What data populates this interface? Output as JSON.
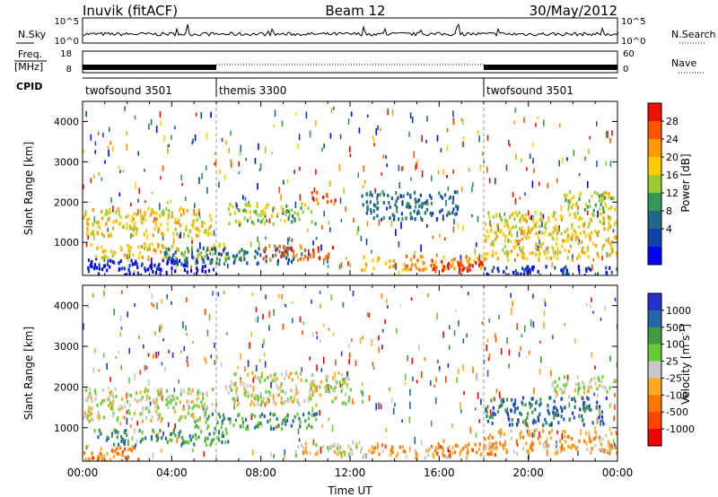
{
  "header": {
    "station": "Inuvik (fitACF)",
    "beam": "Beam 12",
    "date": "30/May/2012"
  },
  "chart_data": [
    {
      "type": "line",
      "panel": "noise",
      "left_label": "N.Sky",
      "right_label": "N.Search",
      "left_ticks": [
        "10^5",
        "10^0"
      ],
      "right_ticks": [
        "10^5",
        "10^0"
      ],
      "series": [
        {
          "name": "N.Sky",
          "line": "solid"
        },
        {
          "name": "N.Search",
          "line": "dotted"
        }
      ]
    },
    {
      "type": "line",
      "panel": "frequency",
      "left_label": "Freq.",
      "left_unit": "[MHz]",
      "left_ticks": [
        "18",
        "8"
      ],
      "right_label": "Nave",
      "right_ticks": [
        "60",
        "0"
      ],
      "freq_segments": [
        {
          "start_hr": 0.0,
          "end_hr": 6.0,
          "freq_mhz": 10.5
        },
        {
          "start_hr": 18.0,
          "end_hr": 24.0,
          "freq_mhz": 10.5
        }
      ],
      "nave_level": 0
    },
    {
      "type": "table",
      "panel": "cpid",
      "label": "CPID",
      "segments": [
        {
          "start_hr": 0,
          "end_hr": 6,
          "text": "twofsound 3501"
        },
        {
          "start_hr": 6,
          "end_hr": 18,
          "text": "themis 3300"
        },
        {
          "start_hr": 18,
          "end_hr": 24,
          "text": "twofsound 3501"
        }
      ]
    },
    {
      "type": "heatmap",
      "panel": "power",
      "ylabel": "Slant Range [km]",
      "xlim_hr": [
        0,
        24
      ],
      "ylim_km": [
        180,
        4500
      ],
      "yticks": [
        1000,
        2000,
        3000,
        4000
      ],
      "colorbar": {
        "label": "Power [dB]",
        "ticks": [
          "28",
          "24",
          "20",
          "16",
          "12",
          "8",
          "4"
        ],
        "colors": [
          "#ee1100",
          "#ff5500",
          "#ff9900",
          "#ffcc00",
          "#99cc33",
          "#339955",
          "#226688",
          "#1144aa",
          "#0000ff"
        ]
      },
      "bands": [
        {
          "t0": 0.0,
          "t1": 6.0,
          "r0": 200,
          "r1": 650,
          "level": 8
        },
        {
          "t0": 0.3,
          "t1": 6.5,
          "r0": 650,
          "r1": 1000,
          "level": 3
        },
        {
          "t0": 0.0,
          "t1": 5.8,
          "r0": 1200,
          "r1": 1900,
          "level": 3
        },
        {
          "t0": 3.5,
          "t1": 9.8,
          "r0": 500,
          "r1": 900,
          "level": 6
        },
        {
          "t0": 6.5,
          "t1": 10.5,
          "r0": 1500,
          "r1": 2000,
          "level": 4
        },
        {
          "t0": 8.0,
          "t1": 11.2,
          "r0": 600,
          "r1": 950,
          "level": 1
        },
        {
          "t0": 10.2,
          "t1": 11.3,
          "r0": 2000,
          "r1": 2300,
          "level": 1
        },
        {
          "t0": 12.5,
          "t1": 16.8,
          "r0": 1600,
          "r1": 2300,
          "level": 6
        },
        {
          "t0": 12.5,
          "t1": 17.9,
          "r0": 350,
          "r1": 700,
          "level": 2
        },
        {
          "t0": 15.5,
          "t1": 18.0,
          "r0": 300,
          "r1": 600,
          "level": 0
        },
        {
          "t0": 18.0,
          "t1": 24.0,
          "r0": 600,
          "r1": 1800,
          "level": 3
        },
        {
          "t0": 21.5,
          "t1": 24.0,
          "r0": 1800,
          "r1": 2300,
          "level": 4
        },
        {
          "t0": 18.0,
          "t1": 24.0,
          "r0": 200,
          "r1": 450,
          "level": 7
        }
      ]
    },
    {
      "type": "heatmap",
      "panel": "velocity",
      "ylabel": "Slant Range [km]",
      "xlabel": "Time UT",
      "xlim_hr": [
        0,
        24
      ],
      "ylim_km": [
        180,
        4500
      ],
      "yticks": [
        1000,
        2000,
        3000,
        4000
      ],
      "xtick_labels": [
        "00:00",
        "04:00",
        "08:00",
        "12:00",
        "16:00",
        "20:00",
        "00:00"
      ],
      "colorbar": {
        "label": "Velocity [m s",
        "label_sup": "-1",
        "label_end": "]",
        "ticks": [
          "1000",
          "500",
          "100",
          "25",
          "-25",
          "-100",
          "-500",
          "-1000"
        ],
        "colors": [
          "#2233cc",
          "#2266aa",
          "#449944",
          "#66cc33",
          "#c8c8c8",
          "#ffaa22",
          "#ff7700",
          "#ff4400",
          "#ee0000"
        ]
      },
      "bands": [
        {
          "t0": 0.0,
          "t1": 2.5,
          "r0": 200,
          "r1": 600,
          "level": 6
        },
        {
          "t0": 0.0,
          "t1": 6.0,
          "r0": 1200,
          "r1": 2000,
          "level": 4
        },
        {
          "t0": 0.5,
          "t1": 6.5,
          "r0": 600,
          "r1": 1000,
          "level": 2
        },
        {
          "t0": 5.0,
          "t1": 10.5,
          "r0": 1000,
          "r1": 1400,
          "level": 2
        },
        {
          "t0": 6.5,
          "t1": 12.0,
          "r0": 1600,
          "r1": 2400,
          "level": 4
        },
        {
          "t0": 9.5,
          "t1": 12.5,
          "r0": 350,
          "r1": 700,
          "level": 4
        },
        {
          "t0": 12.5,
          "t1": 17.5,
          "r0": 300,
          "r1": 600,
          "level": 5
        },
        {
          "t0": 15.5,
          "t1": 18.5,
          "r0": 350,
          "r1": 650,
          "level": 6
        },
        {
          "t0": 18.0,
          "t1": 23.5,
          "r0": 1100,
          "r1": 1800,
          "level": 1
        },
        {
          "t0": 18.0,
          "t1": 24.0,
          "r0": 400,
          "r1": 1000,
          "level": 5
        },
        {
          "t0": 21.0,
          "t1": 24.0,
          "r0": 1800,
          "r1": 2300,
          "level": 4
        }
      ]
    }
  ]
}
